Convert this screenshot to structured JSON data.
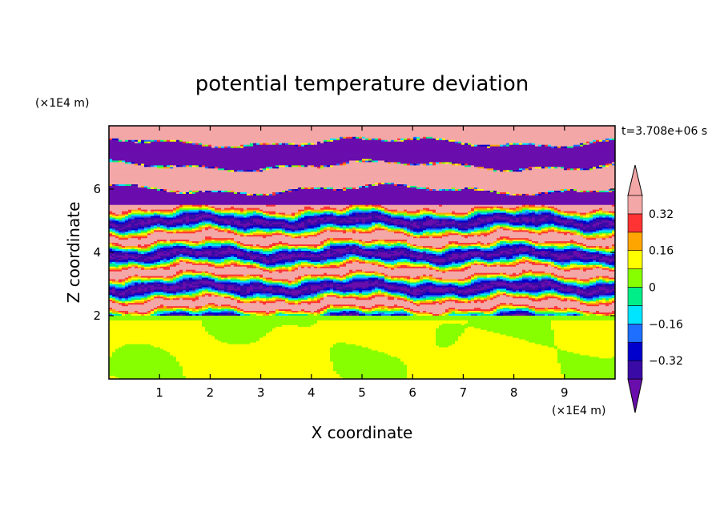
{
  "chart_data": {
    "type": "heatmap",
    "title": "potential temperature deviation",
    "xlabel": "X coordinate",
    "ylabel": "Z coordinate",
    "x_unit": "(×1E4 m)",
    "y_unit": "(×1E4 m)",
    "time_label": "t=3.708e+06 s",
    "xlim": [
      0,
      10
    ],
    "ylim": [
      0,
      8
    ],
    "x_ticks": [
      1,
      2,
      3,
      4,
      5,
      6,
      7,
      8,
      9
    ],
    "y_ticks": [
      2,
      4,
      6
    ],
    "colorbar": {
      "levels": [
        -0.4,
        -0.32,
        -0.24,
        -0.16,
        -0.08,
        0,
        0.08,
        0.16,
        0.24,
        0.32,
        0.4
      ],
      "labels": [
        "−0.32",
        "−0.16",
        "0",
        "0.16",
        "0.32"
      ],
      "label_values": [
        -0.32,
        -0.16,
        0,
        0.16,
        0.32
      ],
      "colors": [
        "#6a0dad",
        "#3a0aa6",
        "#0000cc",
        "#1e6fff",
        "#00e5ff",
        "#00ee88",
        "#88ff00",
        "#ffff00",
        "#ffa500",
        "#ff3333",
        "#f4a7a7"
      ],
      "extend": "both"
    },
    "field_structure": {
      "lower_layer_z": [
        0,
        2
      ],
      "lower_layer_values": "near 0 to +0.05",
      "middle_layer_z": [
        2,
        5.5
      ],
      "middle_layer_values": "-0.4 to +0.4 mixed",
      "upper_layer_z": [
        5.5,
        8
      ],
      "upper_layer_values": "alternating bands below -0.4 and above +0.4"
    }
  }
}
